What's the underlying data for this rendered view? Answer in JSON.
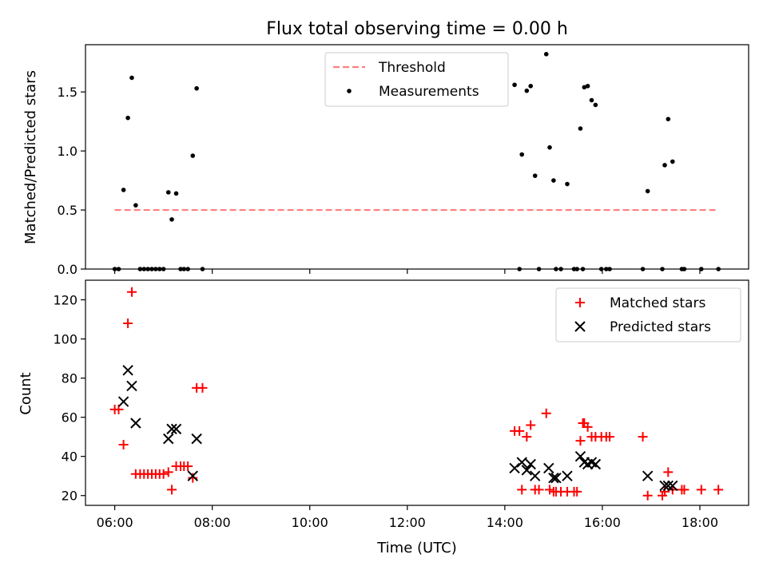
{
  "title": "Flux total observing time = 0.00 h",
  "chart_data": [
    {
      "type": "scatter",
      "ylabel": "Matched/Predicted stars",
      "xlim": [
        5.4,
        19.0
      ],
      "ylim": [
        0,
        1.9
      ],
      "yticks": [
        0.0,
        0.5,
        1.0,
        1.5
      ],
      "ytick_labels": [
        "0.0",
        "0.5",
        "1.0",
        "1.5"
      ],
      "xticks": [
        6,
        8,
        10,
        12,
        14,
        16,
        18
      ],
      "grid": false,
      "legend_position": "top-center",
      "threshold": {
        "name": "Threshold",
        "value": 0.5,
        "x_range": [
          6.0,
          18.38
        ],
        "color": "#ff7f7f",
        "style": "dashed"
      },
      "series": [
        {
          "name": "Measurements",
          "color": "#000000",
          "marker": "dot",
          "points": [
            [
              6.0,
              0.0
            ],
            [
              6.08,
              0.0
            ],
            [
              6.18,
              0.67
            ],
            [
              6.27,
              1.28
            ],
            [
              6.35,
              1.62
            ],
            [
              6.43,
              0.54
            ],
            [
              6.52,
              0.0
            ],
            [
              6.6,
              0.0
            ],
            [
              6.68,
              0.0
            ],
            [
              6.76,
              0.0
            ],
            [
              6.84,
              0.0
            ],
            [
              6.92,
              0.0
            ],
            [
              7.0,
              0.0
            ],
            [
              7.1,
              0.65
            ],
            [
              7.17,
              0.42
            ],
            [
              7.26,
              0.64
            ],
            [
              7.35,
              0.0
            ],
            [
              7.42,
              0.0
            ],
            [
              7.5,
              0.0
            ],
            [
              7.6,
              0.96
            ],
            [
              7.68,
              1.53
            ],
            [
              7.8,
              0.0
            ],
            [
              14.2,
              1.56
            ],
            [
              14.3,
              0.0
            ],
            [
              14.35,
              0.97
            ],
            [
              14.45,
              1.51
            ],
            [
              14.53,
              1.55
            ],
            [
              14.62,
              0.79
            ],
            [
              14.7,
              0.0
            ],
            [
              14.85,
              1.82
            ],
            [
              14.92,
              1.03
            ],
            [
              15.0,
              0.75
            ],
            [
              15.05,
              0.0
            ],
            [
              15.15,
              0.0
            ],
            [
              15.28,
              0.72
            ],
            [
              15.42,
              0.0
            ],
            [
              15.48,
              0.0
            ],
            [
              15.55,
              1.19
            ],
            [
              15.6,
              0.0
            ],
            [
              15.63,
              1.54
            ],
            [
              15.7,
              1.55
            ],
            [
              15.78,
              1.43
            ],
            [
              15.86,
              1.39
            ],
            [
              15.98,
              0.0
            ],
            [
              16.08,
              0.0
            ],
            [
              16.15,
              0.0
            ],
            [
              16.83,
              0.0
            ],
            [
              16.93,
              0.66
            ],
            [
              17.23,
              0.0
            ],
            [
              17.28,
              0.88
            ],
            [
              17.35,
              1.27
            ],
            [
              17.44,
              0.91
            ],
            [
              17.63,
              0.0
            ],
            [
              17.68,
              0.0
            ],
            [
              18.03,
              0.0
            ],
            [
              18.38,
              0.0
            ]
          ]
        }
      ]
    },
    {
      "type": "scatter",
      "xlabel": "Time (UTC)",
      "ylabel": "Count",
      "xlim": [
        5.4,
        19.0
      ],
      "ylim": [
        15,
        130
      ],
      "xticks": [
        6,
        8,
        10,
        12,
        14,
        16,
        18
      ],
      "xtick_labels": [
        "06:00",
        "08:00",
        "10:00",
        "12:00",
        "14:00",
        "16:00",
        "18:00"
      ],
      "yticks": [
        20,
        40,
        60,
        80,
        100,
        120
      ],
      "ytick_labels": [
        "20",
        "40",
        "60",
        "80",
        "100",
        "120"
      ],
      "grid": false,
      "legend_position": "top-right",
      "series": [
        {
          "name": "Matched stars",
          "color": "#ff0000",
          "marker": "plus",
          "points": [
            [
              6.0,
              64
            ],
            [
              6.08,
              64
            ],
            [
              6.18,
              46
            ],
            [
              6.27,
              108
            ],
            [
              6.35,
              124
            ],
            [
              6.43,
              31
            ],
            [
              6.52,
              31
            ],
            [
              6.6,
              31
            ],
            [
              6.68,
              31
            ],
            [
              6.76,
              31
            ],
            [
              6.84,
              31
            ],
            [
              6.92,
              31
            ],
            [
              7.0,
              31
            ],
            [
              7.1,
              32
            ],
            [
              7.17,
              23
            ],
            [
              7.26,
              35
            ],
            [
              7.35,
              35
            ],
            [
              7.42,
              35
            ],
            [
              7.5,
              35
            ],
            [
              7.6,
              29
            ],
            [
              7.68,
              75
            ],
            [
              7.8,
              75
            ],
            [
              14.2,
              53
            ],
            [
              14.3,
              53
            ],
            [
              14.35,
              23
            ],
            [
              14.45,
              50
            ],
            [
              14.53,
              56
            ],
            [
              14.62,
              23
            ],
            [
              14.7,
              23
            ],
            [
              14.85,
              62
            ],
            [
              14.92,
              23
            ],
            [
              15.0,
              22
            ],
            [
              15.05,
              22
            ],
            [
              15.15,
              22
            ],
            [
              15.28,
              22
            ],
            [
              15.42,
              22
            ],
            [
              15.48,
              22
            ],
            [
              15.55,
              48
            ],
            [
              15.6,
              57
            ],
            [
              15.63,
              57
            ],
            [
              15.7,
              55
            ],
            [
              15.78,
              50
            ],
            [
              15.86,
              50
            ],
            [
              15.98,
              50
            ],
            [
              16.08,
              50
            ],
            [
              16.15,
              50
            ],
            [
              16.83,
              50
            ],
            [
              16.93,
              20
            ],
            [
              17.23,
              20
            ],
            [
              17.28,
              22
            ],
            [
              17.35,
              32
            ],
            [
              17.44,
              23
            ],
            [
              17.63,
              23
            ],
            [
              17.68,
              23
            ],
            [
              18.03,
              23
            ],
            [
              18.38,
              23
            ]
          ]
        },
        {
          "name": "Predicted stars",
          "color": "#000000",
          "marker": "x",
          "points": [
            [
              6.18,
              68
            ],
            [
              6.27,
              84
            ],
            [
              6.35,
              76
            ],
            [
              6.43,
              57
            ],
            [
              7.1,
              49
            ],
            [
              7.17,
              54
            ],
            [
              7.26,
              54
            ],
            [
              7.6,
              30
            ],
            [
              7.68,
              49
            ],
            [
              14.2,
              34
            ],
            [
              14.35,
              37
            ],
            [
              14.45,
              33
            ],
            [
              14.53,
              36
            ],
            [
              14.62,
              30
            ],
            [
              14.9,
              34
            ],
            [
              15.0,
              29
            ],
            [
              15.05,
              29
            ],
            [
              15.28,
              30
            ],
            [
              15.55,
              40
            ],
            [
              15.63,
              37
            ],
            [
              15.7,
              36
            ],
            [
              15.78,
              37
            ],
            [
              15.86,
              36
            ],
            [
              16.93,
              30
            ],
            [
              17.28,
              25
            ],
            [
              17.35,
              25
            ],
            [
              17.44,
              25
            ]
          ]
        }
      ]
    }
  ]
}
